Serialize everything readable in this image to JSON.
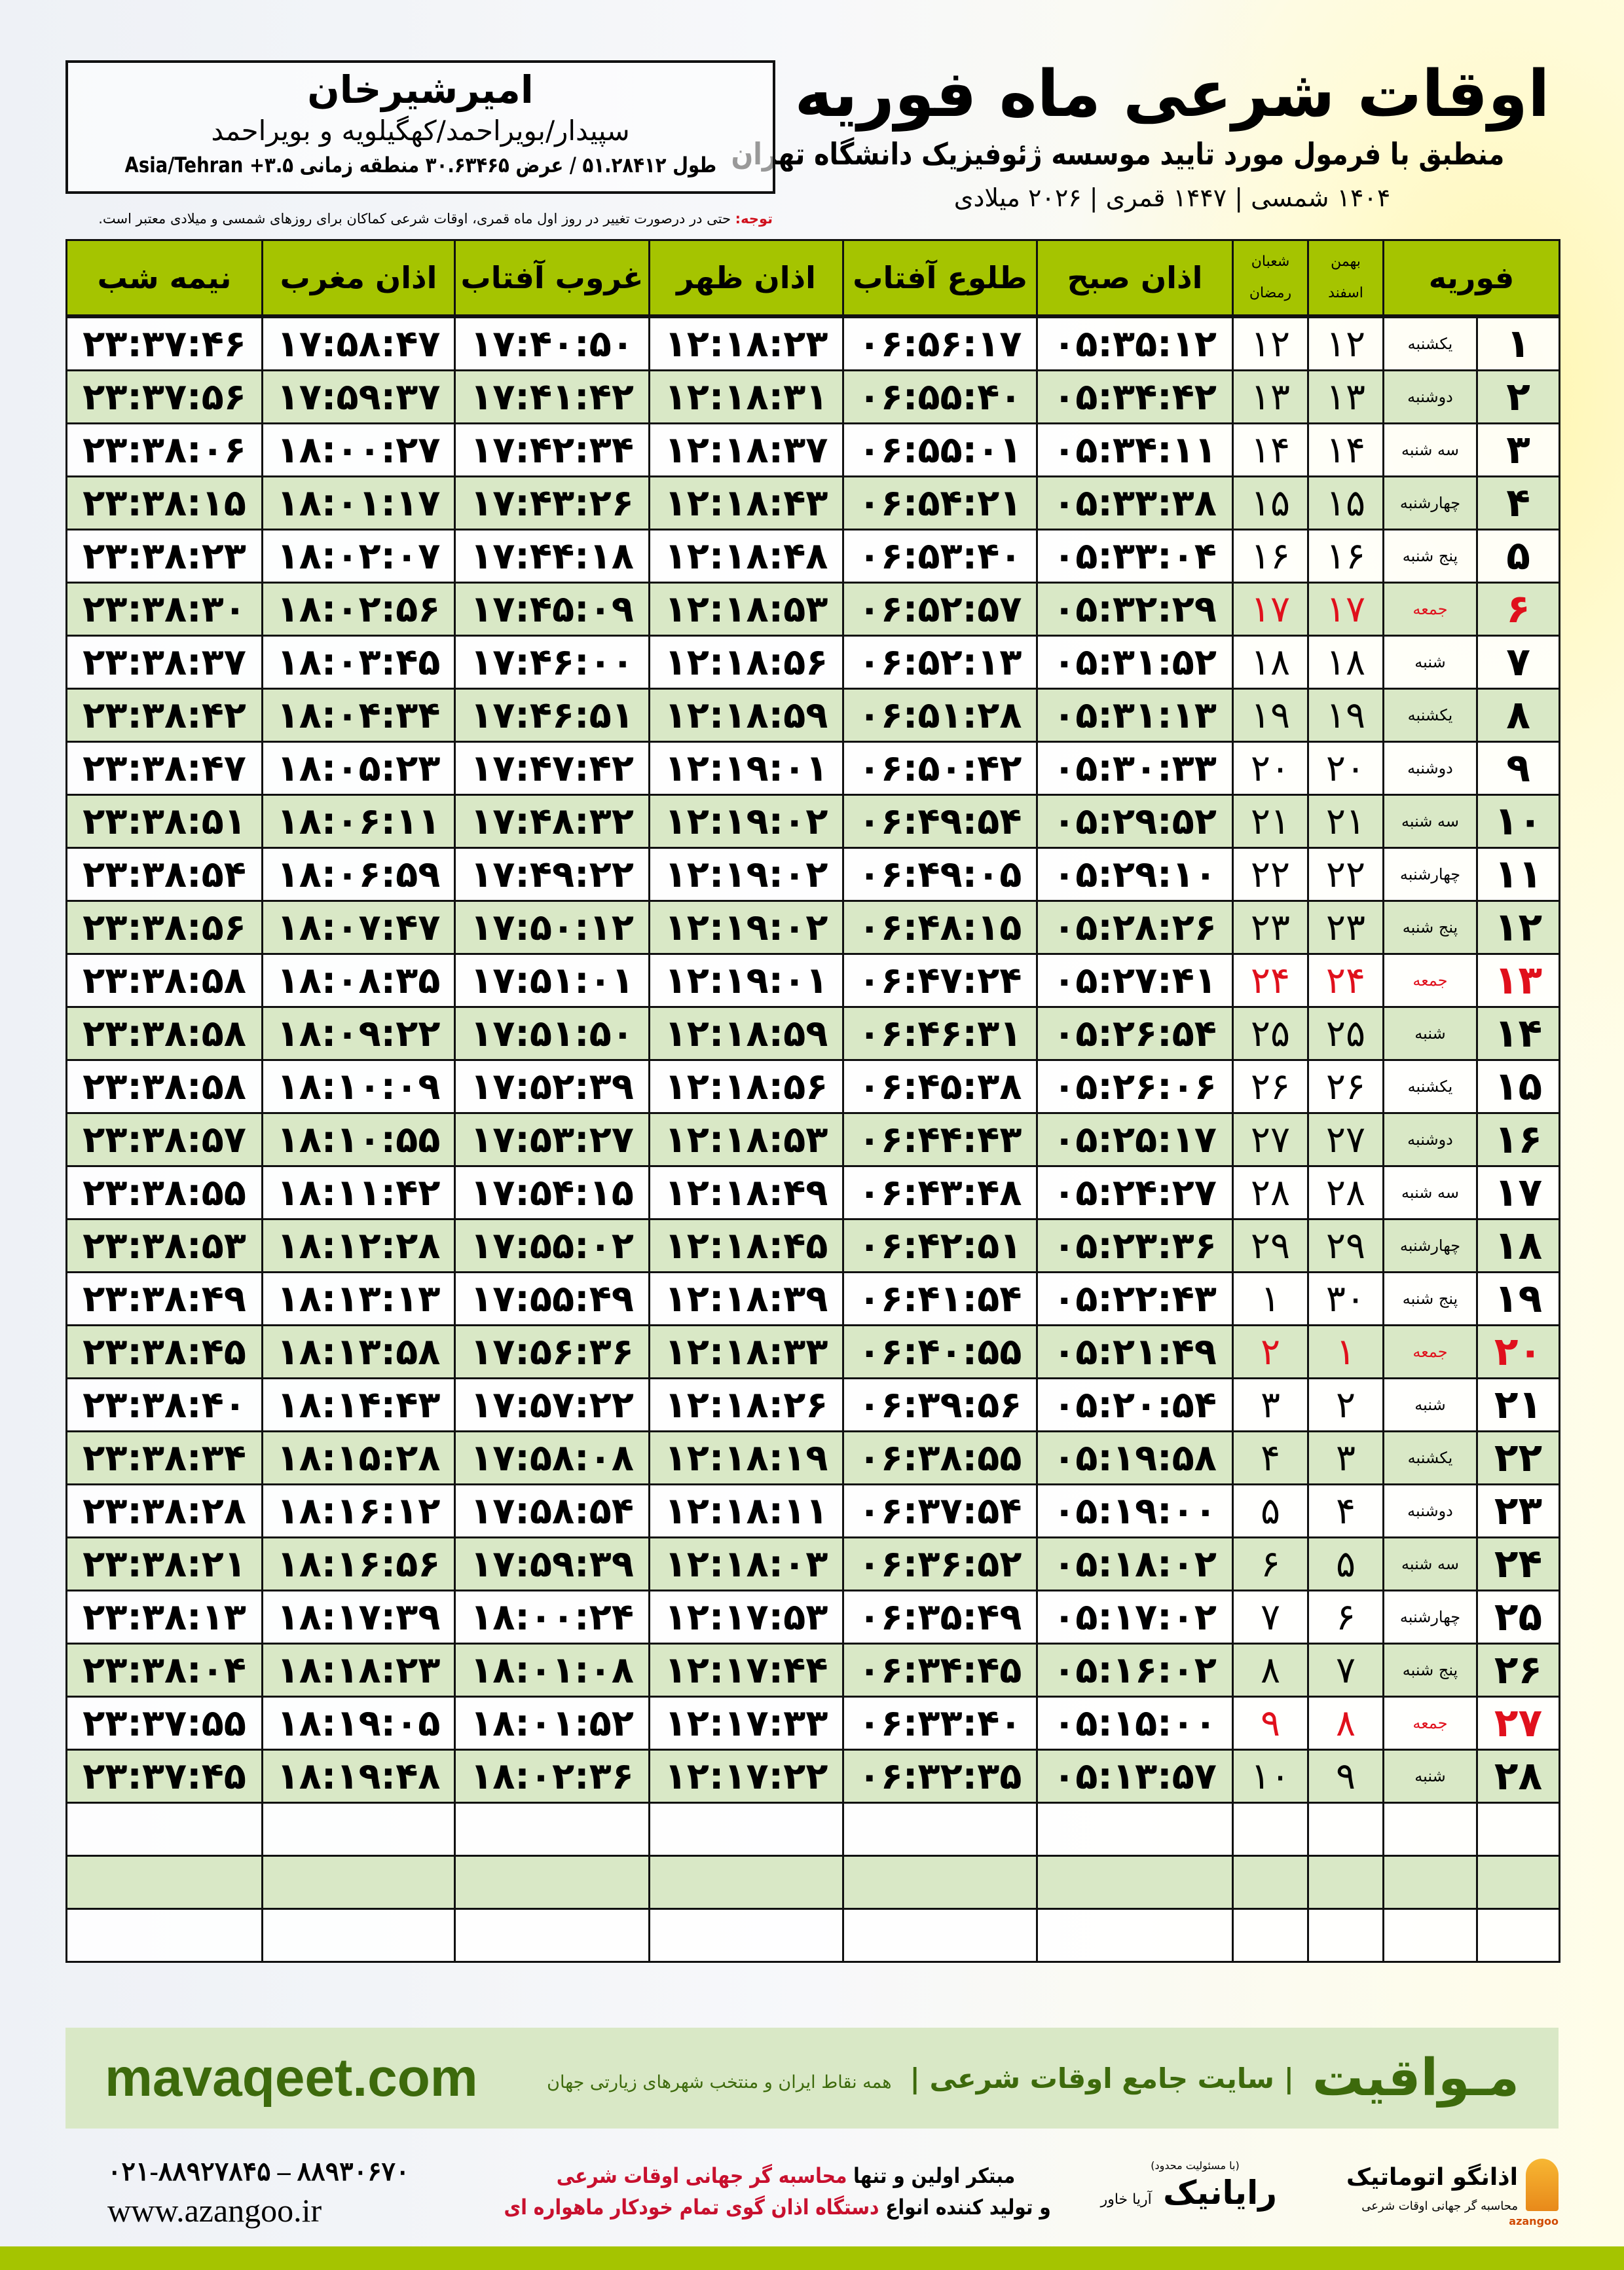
{
  "location": {
    "name": "امیرشیرخان",
    "path": "سپیدار/بویراحمد/کهگیلویه و بویراحمد",
    "coords": "طول ۵۱.۲۸۴۱۲ / عرض ۳۰.۶۳۴۶۵ منطقه زمانی Asia/Tehran +۳.۵"
  },
  "note": {
    "label": "توجه:",
    "text": " حتی در درصورت تغییر در روز اول ماه قمری، اوقات شرعی کماکان برای روزهای شمسی و میلادی معتبر است."
  },
  "title": {
    "main": "اوقات شرعی ماه فوریه",
    "subtitle": "منطبق با فرمول مورد تایید موسسه ژئوفیزیک دانشگاه تهران",
    "years": "۱۴۰۴ شمسی | ۱۴۴۷ قمری | ۲۰۲۶ میلادی"
  },
  "colors": {
    "header": "#a5c400",
    "alt_row": "#d9e8c6",
    "holiday": "#e0101c",
    "brand": "#3d6a0c"
  },
  "table": {
    "headers": {
      "month": "فوریه",
      "solar_top": "بهمن",
      "solar_bottom": "اسفند",
      "lunar_top": "شعبان",
      "lunar_bottom": "رمضان",
      "fajr": "اذان صبح",
      "sunrise": "طلوع آفتاب",
      "dhuhr": "اذان ظهر",
      "sunset": "غروب آفتاب",
      "maghrib": "اذان مغرب",
      "midnight": "نیمه شب"
    },
    "rows": [
      {
        "day": "۱",
        "weekday": "یکشنبه",
        "solar": "۱۲",
        "lunar": "۱۲",
        "fajr": "۰۵:۳۵:۱۲",
        "sunrise": "۰۶:۵۶:۱۷",
        "dhuhr": "۱۲:۱۸:۲۳",
        "sunset": "۱۷:۴۰:۵۰",
        "maghrib": "۱۷:۵۸:۴۷",
        "midnight": "۲۳:۳۷:۴۶",
        "holiday": false
      },
      {
        "day": "۲",
        "weekday": "دوشنبه",
        "solar": "۱۳",
        "lunar": "۱۳",
        "fajr": "۰۵:۳۴:۴۲",
        "sunrise": "۰۶:۵۵:۴۰",
        "dhuhr": "۱۲:۱۸:۳۱",
        "sunset": "۱۷:۴۱:۴۲",
        "maghrib": "۱۷:۵۹:۳۷",
        "midnight": "۲۳:۳۷:۵۶",
        "holiday": false
      },
      {
        "day": "۳",
        "weekday": "سه شنبه",
        "solar": "۱۴",
        "lunar": "۱۴",
        "fajr": "۰۵:۳۴:۱۱",
        "sunrise": "۰۶:۵۵:۰۱",
        "dhuhr": "۱۲:۱۸:۳۷",
        "sunset": "۱۷:۴۲:۳۴",
        "maghrib": "۱۸:۰۰:۲۷",
        "midnight": "۲۳:۳۸:۰۶",
        "holiday": false
      },
      {
        "day": "۴",
        "weekday": "چهارشنبه",
        "solar": "۱۵",
        "lunar": "۱۵",
        "fajr": "۰۵:۳۳:۳۸",
        "sunrise": "۰۶:۵۴:۲۱",
        "dhuhr": "۱۲:۱۸:۴۳",
        "sunset": "۱۷:۴۳:۲۶",
        "maghrib": "۱۸:۰۱:۱۷",
        "midnight": "۲۳:۳۸:۱۵",
        "holiday": false
      },
      {
        "day": "۵",
        "weekday": "پنج شنبه",
        "solar": "۱۶",
        "lunar": "۱۶",
        "fajr": "۰۵:۳۳:۰۴",
        "sunrise": "۰۶:۵۳:۴۰",
        "dhuhr": "۱۲:۱۸:۴۸",
        "sunset": "۱۷:۴۴:۱۸",
        "maghrib": "۱۸:۰۲:۰۷",
        "midnight": "۲۳:۳۸:۲۳",
        "holiday": false
      },
      {
        "day": "۶",
        "weekday": "جمعه",
        "solar": "۱۷",
        "lunar": "۱۷",
        "fajr": "۰۵:۳۲:۲۹",
        "sunrise": "۰۶:۵۲:۵۷",
        "dhuhr": "۱۲:۱۸:۵۳",
        "sunset": "۱۷:۴۵:۰۹",
        "maghrib": "۱۸:۰۲:۵۶",
        "midnight": "۲۳:۳۸:۳۰",
        "holiday": true
      },
      {
        "day": "۷",
        "weekday": "شنبه",
        "solar": "۱۸",
        "lunar": "۱۸",
        "fajr": "۰۵:۳۱:۵۲",
        "sunrise": "۰۶:۵۲:۱۳",
        "dhuhr": "۱۲:۱۸:۵۶",
        "sunset": "۱۷:۴۶:۰۰",
        "maghrib": "۱۸:۰۳:۴۵",
        "midnight": "۲۳:۳۸:۳۷",
        "holiday": false
      },
      {
        "day": "۸",
        "weekday": "یکشنبه",
        "solar": "۱۹",
        "lunar": "۱۹",
        "fajr": "۰۵:۳۱:۱۳",
        "sunrise": "۰۶:۵۱:۲۸",
        "dhuhr": "۱۲:۱۸:۵۹",
        "sunset": "۱۷:۴۶:۵۱",
        "maghrib": "۱۸:۰۴:۳۴",
        "midnight": "۲۳:۳۸:۴۲",
        "holiday": false
      },
      {
        "day": "۹",
        "weekday": "دوشنبه",
        "solar": "۲۰",
        "lunar": "۲۰",
        "fajr": "۰۵:۳۰:۳۳",
        "sunrise": "۰۶:۵۰:۴۲",
        "dhuhr": "۱۲:۱۹:۰۱",
        "sunset": "۱۷:۴۷:۴۲",
        "maghrib": "۱۸:۰۵:۲۳",
        "midnight": "۲۳:۳۸:۴۷",
        "holiday": false
      },
      {
        "day": "۱۰",
        "weekday": "سه شنبه",
        "solar": "۲۱",
        "lunar": "۲۱",
        "fajr": "۰۵:۲۹:۵۲",
        "sunrise": "۰۶:۴۹:۵۴",
        "dhuhr": "۱۲:۱۹:۰۲",
        "sunset": "۱۷:۴۸:۳۲",
        "maghrib": "۱۸:۰۶:۱۱",
        "midnight": "۲۳:۳۸:۵۱",
        "holiday": false
      },
      {
        "day": "۱۱",
        "weekday": "چهارشنبه",
        "solar": "۲۲",
        "lunar": "۲۲",
        "fajr": "۰۵:۲۹:۱۰",
        "sunrise": "۰۶:۴۹:۰۵",
        "dhuhr": "۱۲:۱۹:۰۲",
        "sunset": "۱۷:۴۹:۲۲",
        "maghrib": "۱۸:۰۶:۵۹",
        "midnight": "۲۳:۳۸:۵۴",
        "holiday": false
      },
      {
        "day": "۱۲",
        "weekday": "پنج شنبه",
        "solar": "۲۳",
        "lunar": "۲۳",
        "fajr": "۰۵:۲۸:۲۶",
        "sunrise": "۰۶:۴۸:۱۵",
        "dhuhr": "۱۲:۱۹:۰۲",
        "sunset": "۱۷:۵۰:۱۲",
        "maghrib": "۱۸:۰۷:۴۷",
        "midnight": "۲۳:۳۸:۵۶",
        "holiday": false
      },
      {
        "day": "۱۳",
        "weekday": "جمعه",
        "solar": "۲۴",
        "lunar": "۲۴",
        "fajr": "۰۵:۲۷:۴۱",
        "sunrise": "۰۶:۴۷:۲۴",
        "dhuhr": "۱۲:۱۹:۰۱",
        "sunset": "۱۷:۵۱:۰۱",
        "maghrib": "۱۸:۰۸:۳۵",
        "midnight": "۲۳:۳۸:۵۸",
        "holiday": true
      },
      {
        "day": "۱۴",
        "weekday": "شنبه",
        "solar": "۲۵",
        "lunar": "۲۵",
        "fajr": "۰۵:۲۶:۵۴",
        "sunrise": "۰۶:۴۶:۳۱",
        "dhuhr": "۱۲:۱۸:۵۹",
        "sunset": "۱۷:۵۱:۵۰",
        "maghrib": "۱۸:۰۹:۲۲",
        "midnight": "۲۳:۳۸:۵۸",
        "holiday": false
      },
      {
        "day": "۱۵",
        "weekday": "یکشنبه",
        "solar": "۲۶",
        "lunar": "۲۶",
        "fajr": "۰۵:۲۶:۰۶",
        "sunrise": "۰۶:۴۵:۳۸",
        "dhuhr": "۱۲:۱۸:۵۶",
        "sunset": "۱۷:۵۲:۳۹",
        "maghrib": "۱۸:۱۰:۰۹",
        "midnight": "۲۳:۳۸:۵۸",
        "holiday": false
      },
      {
        "day": "۱۶",
        "weekday": "دوشنبه",
        "solar": "۲۷",
        "lunar": "۲۷",
        "fajr": "۰۵:۲۵:۱۷",
        "sunrise": "۰۶:۴۴:۴۳",
        "dhuhr": "۱۲:۱۸:۵۳",
        "sunset": "۱۷:۵۳:۲۷",
        "maghrib": "۱۸:۱۰:۵۵",
        "midnight": "۲۳:۳۸:۵۷",
        "holiday": false
      },
      {
        "day": "۱۷",
        "weekday": "سه شنبه",
        "solar": "۲۸",
        "lunar": "۲۸",
        "fajr": "۰۵:۲۴:۲۷",
        "sunrise": "۰۶:۴۳:۴۸",
        "dhuhr": "۱۲:۱۸:۴۹",
        "sunset": "۱۷:۵۴:۱۵",
        "maghrib": "۱۸:۱۱:۴۲",
        "midnight": "۲۳:۳۸:۵۵",
        "holiday": false
      },
      {
        "day": "۱۸",
        "weekday": "چهارشنبه",
        "solar": "۲۹",
        "lunar": "۲۹",
        "fajr": "۰۵:۲۳:۳۶",
        "sunrise": "۰۶:۴۲:۵۱",
        "dhuhr": "۱۲:۱۸:۴۵",
        "sunset": "۱۷:۵۵:۰۲",
        "maghrib": "۱۸:۱۲:۲۸",
        "midnight": "۲۳:۳۸:۵۳",
        "holiday": false
      },
      {
        "day": "۱۹",
        "weekday": "پنج شنبه",
        "solar": "۳۰",
        "lunar": "۱",
        "fajr": "۰۵:۲۲:۴۳",
        "sunrise": "۰۶:۴۱:۵۴",
        "dhuhr": "۱۲:۱۸:۳۹",
        "sunset": "۱۷:۵۵:۴۹",
        "maghrib": "۱۸:۱۳:۱۳",
        "midnight": "۲۳:۳۸:۴۹",
        "holiday": false
      },
      {
        "day": "۲۰",
        "weekday": "جمعه",
        "solar": "۱",
        "lunar": "۲",
        "fajr": "۰۵:۲۱:۴۹",
        "sunrise": "۰۶:۴۰:۵۵",
        "dhuhr": "۱۲:۱۸:۳۳",
        "sunset": "۱۷:۵۶:۳۶",
        "maghrib": "۱۸:۱۳:۵۸",
        "midnight": "۲۳:۳۸:۴۵",
        "holiday": true
      },
      {
        "day": "۲۱",
        "weekday": "شنبه",
        "solar": "۲",
        "lunar": "۳",
        "fajr": "۰۵:۲۰:۵۴",
        "sunrise": "۰۶:۳۹:۵۶",
        "dhuhr": "۱۲:۱۸:۲۶",
        "sunset": "۱۷:۵۷:۲۲",
        "maghrib": "۱۸:۱۴:۴۳",
        "midnight": "۲۳:۳۸:۴۰",
        "holiday": false
      },
      {
        "day": "۲۲",
        "weekday": "یکشنبه",
        "solar": "۳",
        "lunar": "۴",
        "fajr": "۰۵:۱۹:۵۸",
        "sunrise": "۰۶:۳۸:۵۵",
        "dhuhr": "۱۲:۱۸:۱۹",
        "sunset": "۱۷:۵۸:۰۸",
        "maghrib": "۱۸:۱۵:۲۸",
        "midnight": "۲۳:۳۸:۳۴",
        "holiday": false
      },
      {
        "day": "۲۳",
        "weekday": "دوشنبه",
        "solar": "۴",
        "lunar": "۵",
        "fajr": "۰۵:۱۹:۰۰",
        "sunrise": "۰۶:۳۷:۵۴",
        "dhuhr": "۱۲:۱۸:۱۱",
        "sunset": "۱۷:۵۸:۵۴",
        "maghrib": "۱۸:۱۶:۱۲",
        "midnight": "۲۳:۳۸:۲۸",
        "holiday": false
      },
      {
        "day": "۲۴",
        "weekday": "سه شنبه",
        "solar": "۵",
        "lunar": "۶",
        "fajr": "۰۵:۱۸:۰۲",
        "sunrise": "۰۶:۳۶:۵۲",
        "dhuhr": "۱۲:۱۸:۰۳",
        "sunset": "۱۷:۵۹:۳۹",
        "maghrib": "۱۸:۱۶:۵۶",
        "midnight": "۲۳:۳۸:۲۱",
        "holiday": false
      },
      {
        "day": "۲۵",
        "weekday": "چهارشنبه",
        "solar": "۶",
        "lunar": "۷",
        "fajr": "۰۵:۱۷:۰۲",
        "sunrise": "۰۶:۳۵:۴۹",
        "dhuhr": "۱۲:۱۷:۵۳",
        "sunset": "۱۸:۰۰:۲۴",
        "maghrib": "۱۸:۱۷:۳۹",
        "midnight": "۲۳:۳۸:۱۳",
        "holiday": false
      },
      {
        "day": "۲۶",
        "weekday": "پنج شنبه",
        "solar": "۷",
        "lunar": "۸",
        "fajr": "۰۵:۱۶:۰۲",
        "sunrise": "۰۶:۳۴:۴۵",
        "dhuhr": "۱۲:۱۷:۴۴",
        "sunset": "۱۸:۰۱:۰۸",
        "maghrib": "۱۸:۱۸:۲۳",
        "midnight": "۲۳:۳۸:۰۴",
        "holiday": false
      },
      {
        "day": "۲۷",
        "weekday": "جمعه",
        "solar": "۸",
        "lunar": "۹",
        "fajr": "۰۵:۱۵:۰۰",
        "sunrise": "۰۶:۳۳:۴۰",
        "dhuhr": "۱۲:۱۷:۳۳",
        "sunset": "۱۸:۰۱:۵۲",
        "maghrib": "۱۸:۱۹:۰۵",
        "midnight": "۲۳:۳۷:۵۵",
        "holiday": true
      },
      {
        "day": "۲۸",
        "weekday": "شنبه",
        "solar": "۹",
        "lunar": "۱۰",
        "fajr": "۰۵:۱۳:۵۷",
        "sunrise": "۰۶:۳۲:۳۵",
        "dhuhr": "۱۲:۱۷:۲۲",
        "sunset": "۱۸:۰۲:۳۶",
        "maghrib": "۱۸:۱۹:۴۸",
        "midnight": "۲۳:۳۷:۴۵",
        "holiday": false
      }
    ]
  },
  "mavaqeet": {
    "logo": "مـواقیت",
    "tagline": "| سایت جامع اوقات شرعی |",
    "subline": "همه نقاط ایران و منتخب شهرهای زیارتی جهان",
    "url": "mavaqeet.com"
  },
  "footer": {
    "phone": "۰۲۱-۸۸۹۲۷۸۴۵ – ۸۸۹۳۰۶۷۰",
    "website": "www.azangoo.ir",
    "promo_line1_a": "مبتکر اولین و تنها ",
    "promo_line1_b": "محاسبه گر جهانی اوقات شرعی",
    "promo_line2_a": "و تولید کننده انواع ",
    "promo_line2_b": "دستگاه اذان گوی تمام خودکار ماهواره ای",
    "rayanik": "رایانیک",
    "rayanik_sub": "آریا خاور",
    "rayanik_note": "(با مسئولیت محدود)",
    "azangoo_name": "اذانگو اتوماتیک",
    "azangoo_sub": "محاسبه گر جهانی اوقات شرعی",
    "azangoo_en": "azangoo"
  }
}
